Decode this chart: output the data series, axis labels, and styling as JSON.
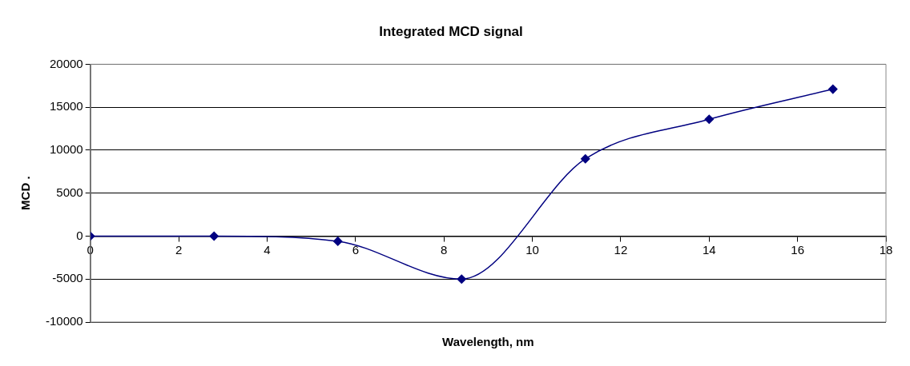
{
  "chart_data": {
    "type": "line",
    "title": "Integrated MCD signal",
    "xlabel": "Wavelength, nm",
    "ylabel": "MCD .",
    "x": [
      0,
      2.8,
      5.6,
      8.4,
      11.2,
      14,
      16.8
    ],
    "series": [
      {
        "color": "#000080",
        "values": [
          0,
          0,
          -600,
          -5000,
          9000,
          13600,
          17100
        ]
      }
    ],
    "xlim": [
      0,
      18
    ],
    "xticks": [
      0,
      2,
      4,
      6,
      8,
      10,
      12,
      14,
      16,
      18
    ],
    "ylim": [
      -10000,
      20000
    ],
    "yticks": [
      -10000,
      -5000,
      0,
      5000,
      10000,
      15000,
      20000
    ],
    "grid": "y",
    "legend": false,
    "marker": "diamond",
    "line_style": "solid"
  }
}
